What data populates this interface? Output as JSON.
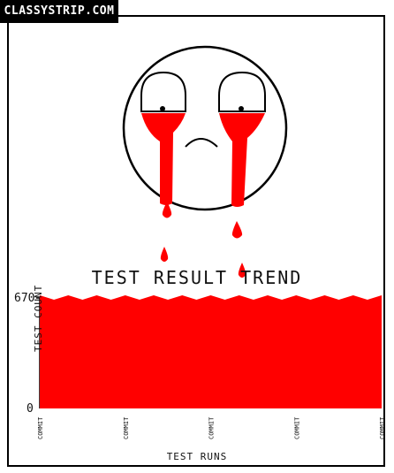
{
  "badge": "CLASSYSTRIP.COM",
  "chart_data": {
    "type": "area",
    "title": "TEST RESULT TREND",
    "xlabel": "TEST RUNS",
    "ylabel": "TEST COUNT",
    "yticks": [
      "670",
      "0"
    ],
    "ylim": [
      0,
      670
    ],
    "categories": [
      "COMMIT",
      "COMMIT",
      "COMMIT",
      "COMMIT",
      "COMMIT"
    ],
    "values": [
      670,
      670,
      670,
      670,
      670
    ],
    "grid": false
  },
  "colors": {
    "fill": "#ff0000",
    "ink": "#000000",
    "background": "#ffffff"
  }
}
